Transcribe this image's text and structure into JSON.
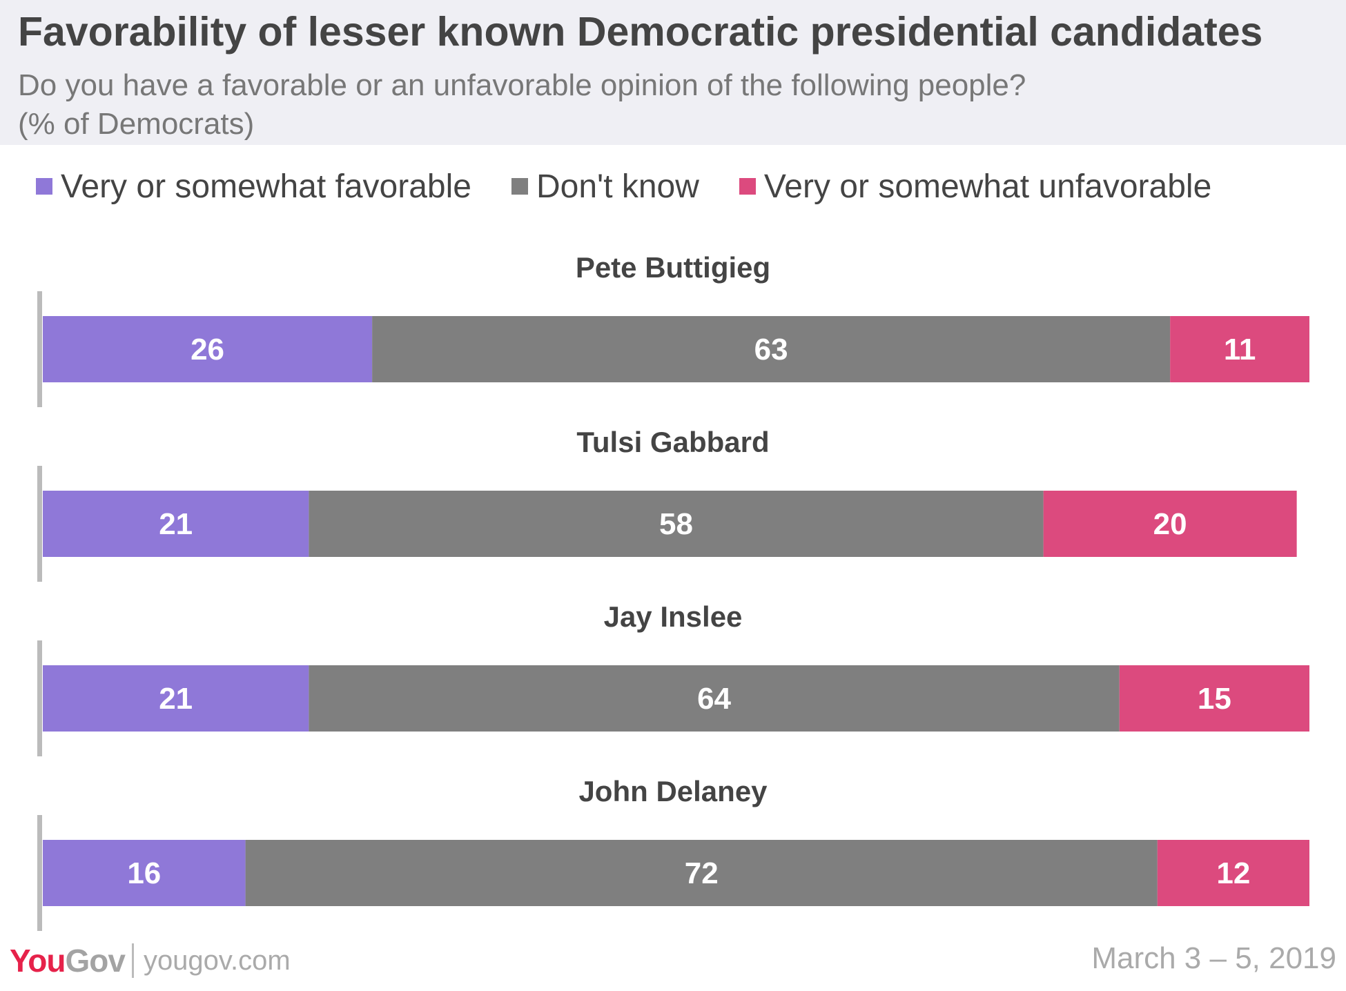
{
  "header": {
    "title": "Favorability of lesser known Democratic presidential candidates",
    "subtitle_line1": "Do you have a favorable or an unfavorable opinion of the following people?",
    "subtitle_line2": "(% of Democrats)"
  },
  "colors": {
    "favorable": "#8f78d8",
    "dont_know": "#7f7f7f",
    "unfavorable": "#dc4a7e",
    "header_bg": "#efeff4",
    "axis": "#bbbbbb"
  },
  "legend": [
    {
      "label": "Very or somewhat favorable",
      "color": "#8f78d8"
    },
    {
      "label": "Don't know",
      "color": "#7f7f7f"
    },
    {
      "label": "Very or somewhat unfavorable",
      "color": "#dc4a7e"
    }
  ],
  "chart_data": {
    "type": "bar",
    "orientation": "horizontal",
    "stacked": true,
    "categories": [
      "Pete Buttigieg",
      "Tulsi Gabbard",
      "Jay Inslee",
      "John Delaney"
    ],
    "series": [
      {
        "name": "Very or somewhat favorable",
        "values": [
          26,
          21,
          21,
          16
        ],
        "color": "#8f78d8"
      },
      {
        "name": "Don't know",
        "values": [
          63,
          58,
          64,
          72
        ],
        "color": "#7f7f7f"
      },
      {
        "name": "Very or somewhat unfavorable",
        "values": [
          11,
          20,
          15,
          12
        ],
        "color": "#dc4a7e"
      }
    ],
    "xlim": [
      0,
      100
    ],
    "legend_position": "top",
    "grid": false,
    "data_labels": true
  },
  "footer": {
    "logo_you": "You",
    "logo_gov": "Gov",
    "site": "yougov.com",
    "date": "March 3 – 5, 2019"
  }
}
